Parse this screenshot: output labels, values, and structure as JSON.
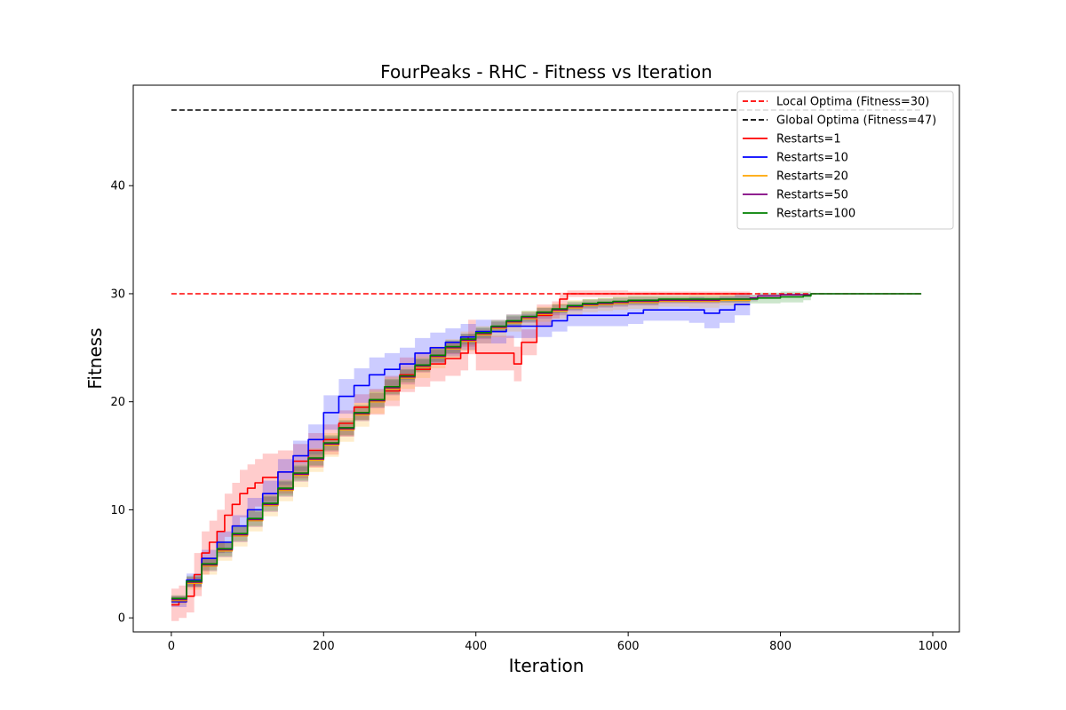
{
  "chart_data": {
    "type": "line",
    "title": "FourPeaks - RHC - Fitness vs Iteration",
    "xlabel": "Iteration",
    "ylabel": "Fitness",
    "xlim": [
      -50,
      1035
    ],
    "ylim": [
      -1.3,
      49.3
    ],
    "xticks": [
      0,
      200,
      400,
      600,
      800,
      1000
    ],
    "yticks": [
      0,
      10,
      20,
      30,
      40
    ],
    "grid": false,
    "legend_position": "top-right",
    "reference_lines": [
      {
        "name": "Local Optima (Fitness=30)",
        "y": 30,
        "x_range": [
          0,
          985
        ],
        "color": "#ff0000",
        "style": "dashed"
      },
      {
        "name": "Global Optima (Fitness=47)",
        "y": 47,
        "x_range": [
          0,
          985
        ],
        "color": "#000000",
        "style": "dashed"
      }
    ],
    "series": [
      {
        "name": "Restarts=1",
        "color": "#ff0000",
        "end": 760,
        "x": [
          0,
          10,
          20,
          30,
          40,
          50,
          60,
          70,
          80,
          90,
          100,
          110,
          120,
          140,
          160,
          180,
          200,
          220,
          240,
          260,
          280,
          300,
          320,
          340,
          360,
          380,
          390,
          400,
          420,
          440,
          450,
          460,
          470,
          480,
          500,
          510,
          520,
          600,
          700,
          760
        ],
        "y": [
          1.2,
          1.5,
          2.0,
          4.0,
          6.0,
          7.0,
          8.0,
          9.5,
          10.5,
          11.5,
          12.0,
          12.5,
          13.0,
          13.5,
          14.5,
          15.5,
          16.5,
          18.0,
          19.5,
          20.0,
          21.0,
          22.5,
          23.0,
          23.5,
          24.0,
          24.5,
          26.0,
          24.5,
          24.5,
          24.5,
          23.5,
          25.5,
          25.5,
          28.0,
          28.5,
          29.5,
          30.0,
          30.0,
          30.0,
          30.0
        ],
        "band": [
          1.5,
          1.5,
          1.5,
          2.0,
          2.0,
          2.0,
          2.0,
          2.0,
          2.0,
          2.2,
          2.2,
          2.2,
          2.2,
          2.0,
          1.6,
          1.6,
          1.4,
          1.2,
          1.2,
          1.2,
          1.4,
          1.6,
          1.6,
          1.6,
          1.6,
          1.6,
          1.6,
          1.6,
          1.6,
          1.6,
          1.6,
          1.2,
          1.2,
          1.0,
          0.8,
          0.6,
          0.3,
          0.2,
          0.2,
          0.2
        ]
      },
      {
        "name": "Restarts=10",
        "color": "#0000ff",
        "end": 760,
        "x": [
          0,
          20,
          40,
          60,
          80,
          100,
          120,
          140,
          160,
          180,
          200,
          220,
          240,
          260,
          280,
          300,
          320,
          340,
          360,
          380,
          400,
          420,
          440,
          460,
          480,
          500,
          520,
          540,
          560,
          580,
          600,
          620,
          640,
          660,
          680,
          700,
          720,
          740,
          760
        ],
        "y": [
          1.5,
          3.5,
          5.5,
          7.0,
          8.5,
          10.0,
          11.5,
          13.5,
          15.0,
          16.5,
          19.0,
          20.5,
          21.5,
          22.5,
          23.0,
          23.5,
          24.5,
          25.0,
          25.5,
          26.0,
          26.5,
          26.5,
          27.0,
          27.0,
          27.0,
          27.5,
          28.0,
          28.0,
          28.0,
          28.0,
          28.2,
          28.5,
          28.5,
          28.5,
          28.5,
          28.2,
          28.5,
          29.0,
          29.0
        ],
        "band": [
          0.5,
          0.6,
          0.8,
          1.0,
          1.0,
          1.1,
          1.2,
          1.2,
          1.4,
          1.4,
          1.6,
          1.6,
          1.6,
          1.6,
          1.5,
          1.5,
          1.4,
          1.4,
          1.3,
          1.2,
          1.1,
          1.1,
          1.1,
          1.1,
          1.0,
          1.0,
          1.0,
          1.0,
          1.0,
          1.0,
          1.0,
          1.0,
          1.0,
          1.0,
          1.2,
          1.4,
          1.2,
          1.0,
          0.8
        ]
      },
      {
        "name": "Restarts=20",
        "color": "#ffa500",
        "end": 760,
        "x": [
          0,
          20,
          40,
          60,
          80,
          100,
          120,
          140,
          160,
          180,
          200,
          220,
          240,
          260,
          280,
          300,
          320,
          340,
          360,
          380,
          400,
          420,
          440,
          460,
          480,
          500,
          520,
          540,
          560,
          580,
          600,
          640,
          680,
          720,
          760
        ],
        "y": [
          1.6,
          3.2,
          4.8,
          6.2,
          7.6,
          9.0,
          10.4,
          11.8,
          13.2,
          14.6,
          16.0,
          17.4,
          18.8,
          20.0,
          21.2,
          22.2,
          23.2,
          24.1,
          24.9,
          25.6,
          26.2,
          26.8,
          27.3,
          27.7,
          28.1,
          28.4,
          28.7,
          28.9,
          29.0,
          29.1,
          29.2,
          29.3,
          29.3,
          29.4,
          29.5
        ],
        "band": [
          0.4,
          0.6,
          0.8,
          0.9,
          1.0,
          1.0,
          1.0,
          1.0,
          1.1,
          1.1,
          1.1,
          1.1,
          1.1,
          1.1,
          1.1,
          1.0,
          1.0,
          1.0,
          0.9,
          0.9,
          0.8,
          0.8,
          0.8,
          0.7,
          0.7,
          0.7,
          0.7,
          0.6,
          0.6,
          0.6,
          0.6,
          0.5,
          0.6,
          0.5,
          0.4
        ]
      },
      {
        "name": "Restarts=50",
        "color": "#800080",
        "end": 985,
        "x": [
          0,
          20,
          40,
          60,
          80,
          100,
          120,
          140,
          160,
          180,
          200,
          220,
          240,
          260,
          280,
          300,
          320,
          340,
          360,
          380,
          400,
          420,
          440,
          460,
          480,
          500,
          520,
          540,
          560,
          580,
          600,
          640,
          680,
          720,
          760,
          770,
          800,
          840,
          900,
          985
        ],
        "y": [
          1.7,
          3.3,
          4.9,
          6.3,
          7.7,
          9.1,
          10.5,
          11.9,
          13.3,
          14.7,
          16.1,
          17.5,
          18.9,
          20.1,
          21.3,
          22.3,
          23.3,
          24.2,
          25.0,
          25.7,
          26.3,
          26.9,
          27.4,
          27.8,
          28.2,
          28.5,
          28.8,
          29.0,
          29.1,
          29.2,
          29.3,
          29.4,
          29.4,
          29.5,
          29.6,
          29.8,
          29.9,
          30.0,
          30.0,
          30.0
        ],
        "band": [
          0.3,
          0.5,
          0.6,
          0.7,
          0.7,
          0.7,
          0.7,
          0.7,
          0.7,
          0.7,
          0.7,
          0.7,
          0.7,
          0.7,
          0.7,
          0.7,
          0.6,
          0.6,
          0.6,
          0.6,
          0.5,
          0.5,
          0.5,
          0.5,
          0.5,
          0.5,
          0.4,
          0.4,
          0.4,
          0.4,
          0.4,
          0.3,
          0.3,
          0.3,
          0.3,
          0.2,
          0.1,
          0.0,
          0.0,
          0.0
        ]
      },
      {
        "name": "Restarts=100",
        "color": "#008000",
        "end": 985,
        "x": [
          0,
          20,
          40,
          60,
          80,
          100,
          120,
          140,
          160,
          180,
          200,
          220,
          240,
          260,
          280,
          300,
          320,
          340,
          360,
          380,
          400,
          420,
          440,
          460,
          480,
          500,
          520,
          540,
          560,
          580,
          600,
          640,
          680,
          720,
          760,
          770,
          800,
          830,
          840,
          900,
          985
        ],
        "y": [
          1.8,
          3.4,
          5.0,
          6.4,
          7.8,
          9.2,
          10.6,
          12.0,
          13.4,
          14.8,
          16.2,
          17.6,
          19.0,
          20.2,
          21.4,
          22.4,
          23.4,
          24.3,
          25.1,
          25.8,
          26.4,
          27.0,
          27.5,
          27.9,
          28.3,
          28.6,
          28.9,
          29.1,
          29.2,
          29.3,
          29.4,
          29.5,
          29.5,
          29.5,
          29.5,
          29.6,
          29.7,
          29.8,
          30.0,
          30.0,
          30.0
        ],
        "band": [
          0.3,
          0.5,
          0.6,
          0.7,
          0.7,
          0.7,
          0.7,
          0.7,
          0.7,
          0.7,
          0.7,
          0.7,
          0.7,
          0.7,
          0.7,
          0.6,
          0.6,
          0.6,
          0.6,
          0.5,
          0.5,
          0.5,
          0.5,
          0.5,
          0.4,
          0.4,
          0.4,
          0.4,
          0.4,
          0.4,
          0.4,
          0.3,
          0.3,
          0.3,
          0.4,
          0.5,
          0.5,
          0.4,
          0.0,
          0.0,
          0.0
        ]
      }
    ]
  }
}
